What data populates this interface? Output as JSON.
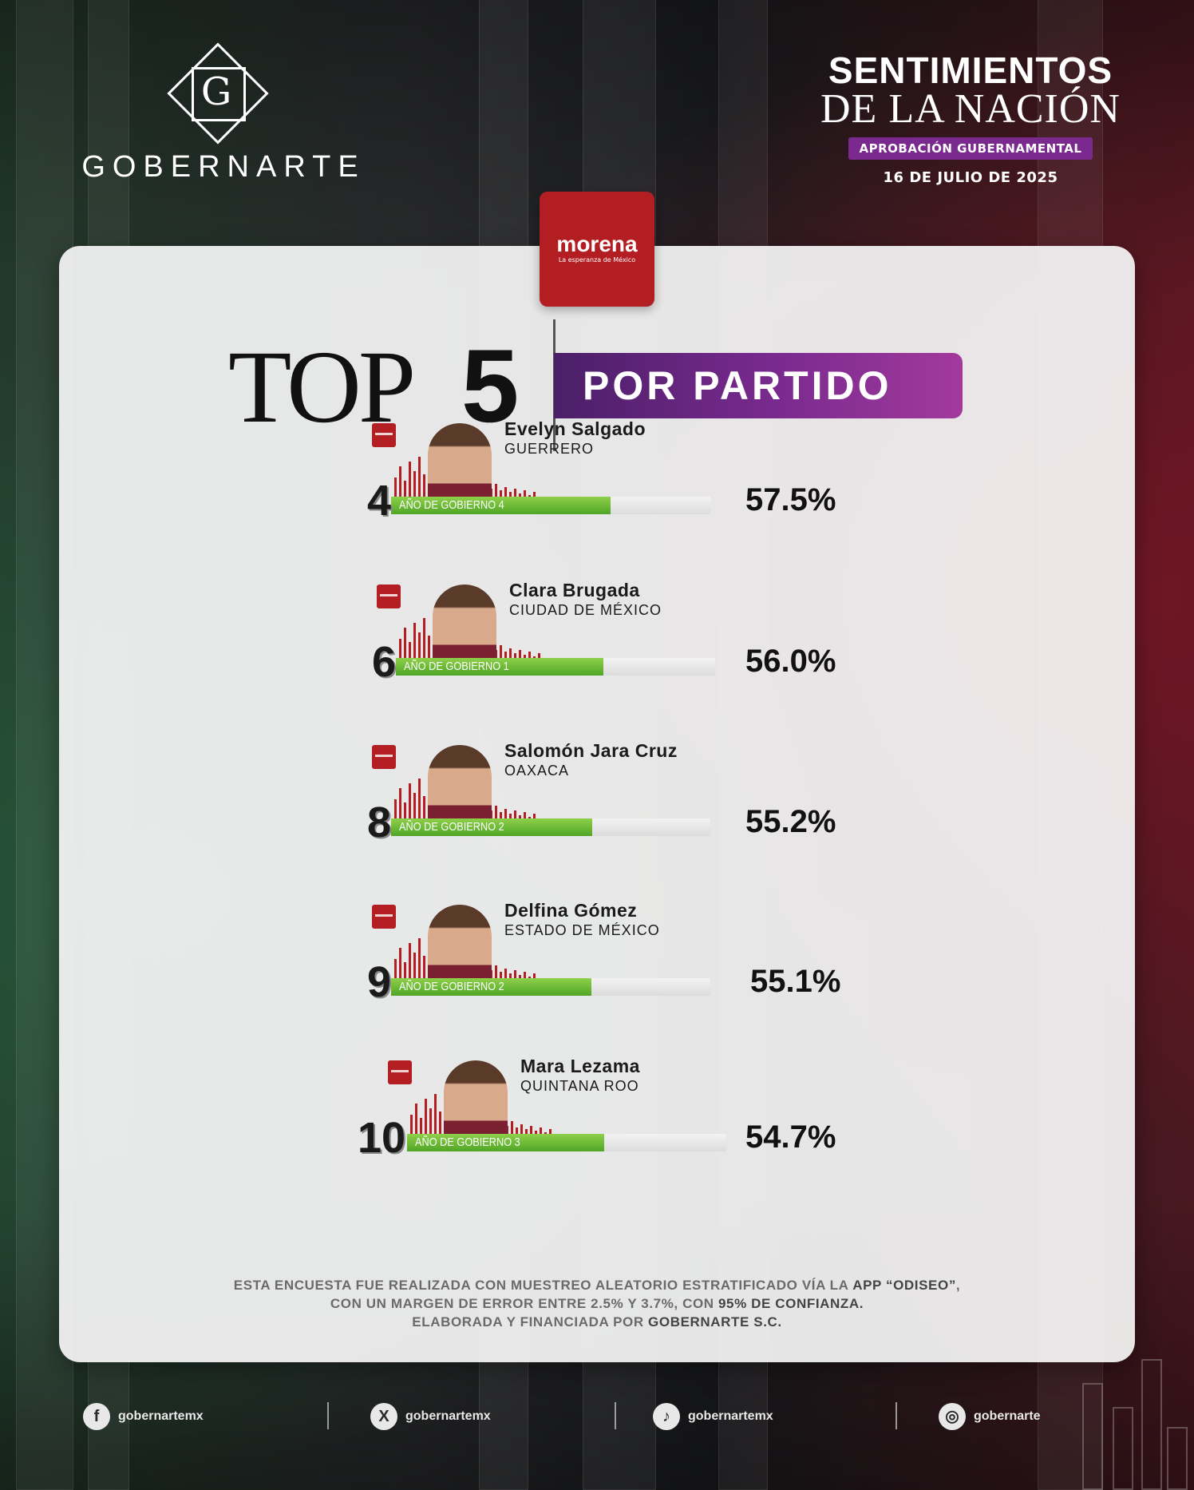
{
  "brand": {
    "logo_letter": "G",
    "name": "GOBERNARTE"
  },
  "header": {
    "title_line1": "SENTIMIENTOS",
    "title_line2": "DE LA NACIÓN",
    "subtitle": "APROBACIÓN GUBERNAMENTAL",
    "date": "16 DE JULIO DE 2025"
  },
  "party": {
    "name": "morena",
    "tagline": "La esperanza de México",
    "color": "#b31e22"
  },
  "heading": {
    "top": "TOP",
    "number": "5",
    "label": "POR PARTIDO"
  },
  "colors": {
    "accent_purple": "#7a2a8f",
    "bar_green": "#4fa526",
    "party_red": "#b31e22"
  },
  "ranking": [
    {
      "rank": "4",
      "name": "Evelyn Salgado",
      "state": "GUERRERO",
      "term": "AÑO DE GOBIERNO 4",
      "approval": 57.5,
      "approval_label": "57.5%"
    },
    {
      "rank": "6",
      "name": "Clara Brugada",
      "state": "CIUDAD DE MÉXICO",
      "term": "AÑO DE GOBIERNO 1",
      "approval": 56.0,
      "approval_label": "56.0%"
    },
    {
      "rank": "8",
      "name": "Salomón Jara Cruz",
      "state": "OAXACA",
      "term": "AÑO DE GOBIERNO 2",
      "approval": 55.2,
      "approval_label": "55.2%"
    },
    {
      "rank": "9",
      "name": "Delfina Gómez",
      "state": "ESTADO DE MÉXICO",
      "term": "AÑO DE GOBIERNO 2",
      "approval": 55.1,
      "approval_label": "55.1%"
    },
    {
      "rank": "10",
      "name": "Mara Lezama",
      "state": "QUINTANA ROO",
      "term": "AÑO DE GOBIERNO 3",
      "approval": 54.7,
      "approval_label": "54.7%"
    }
  ],
  "footnote": {
    "l1_a": "ESTA ENCUESTA FUE REALIZADA CON MUESTREO ALEATORIO ESTRATIFICADO VÍA LA ",
    "l1_b": "APP “ODISEO”",
    "l1_c": ",",
    "l2_a": "CON UN MARGEN DE ERROR ENTRE 2.5% Y 3.7%, CON ",
    "l2_b": "95% DE CONFIANZA.",
    "l3_a": "ELABORADA Y FINANCIADA POR ",
    "l3_b": "GOBERNARTE S.C."
  },
  "social": [
    {
      "icon": "facebook-icon",
      "glyph": "f",
      "handle": "gobernartemx"
    },
    {
      "icon": "x-icon",
      "glyph": "X",
      "handle": "gobernartemx"
    },
    {
      "icon": "tiktok-icon",
      "glyph": "♪",
      "handle": "gobernartemx"
    },
    {
      "icon": "instagram-icon",
      "glyph": "◎",
      "handle": "gobernarte"
    }
  ]
}
